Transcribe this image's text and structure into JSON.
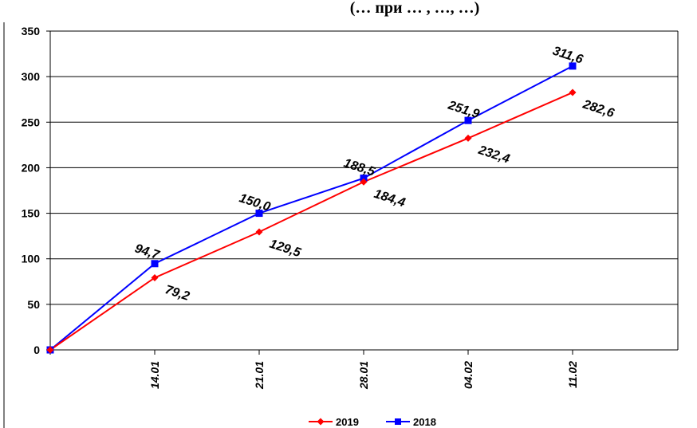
{
  "chart_data": {
    "type": "line",
    "title": "(… при … , …, …)",
    "categories": [
      "",
      "14.01",
      "21.01",
      "28.01",
      "04.02",
      "11.02"
    ],
    "series": [
      {
        "name": "2019",
        "color": "#ff0000",
        "marker": "diamond",
        "values": [
          0,
          79.2,
          129.5,
          184.4,
          232.4,
          282.6
        ],
        "labels": [
          "",
          "79,2",
          "129,5",
          "184,4",
          "232,4",
          "282,6"
        ]
      },
      {
        "name": "2018",
        "color": "#0000ff",
        "marker": "square",
        "values": [
          0,
          94.7,
          150.0,
          188.5,
          251.9,
          311.6
        ],
        "labels": [
          "",
          "94,7",
          "150,0",
          "188,5",
          "251,9",
          "311,6"
        ]
      }
    ],
    "yticks": [
      "0",
      "50",
      "100",
      "150",
      "200",
      "250",
      "300",
      "350"
    ],
    "ylim": [
      0,
      350
    ],
    "grid": true,
    "legend": "bottom",
    "xlabel": "",
    "ylabel": ""
  }
}
